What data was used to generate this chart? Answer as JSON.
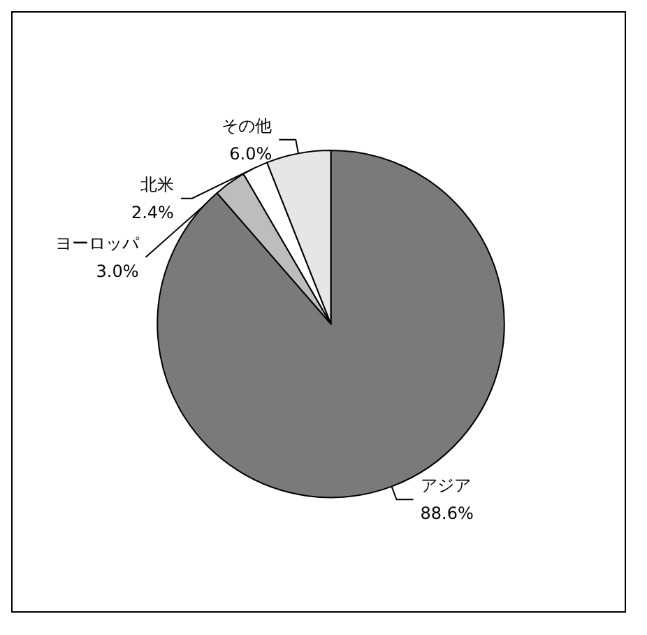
{
  "chart_data": {
    "type": "pie",
    "categories": [
      "アジア",
      "ヨーロッパ",
      "北米",
      "その他"
    ],
    "values": [
      88.6,
      3.0,
      2.4,
      6.0
    ],
    "value_labels": [
      "88.6%",
      "3.0%",
      "2.4%",
      "6.0%"
    ],
    "colors": [
      "#7a7a7a",
      "#bdbdbd",
      "#ffffff",
      "#e6e6e6"
    ]
  }
}
